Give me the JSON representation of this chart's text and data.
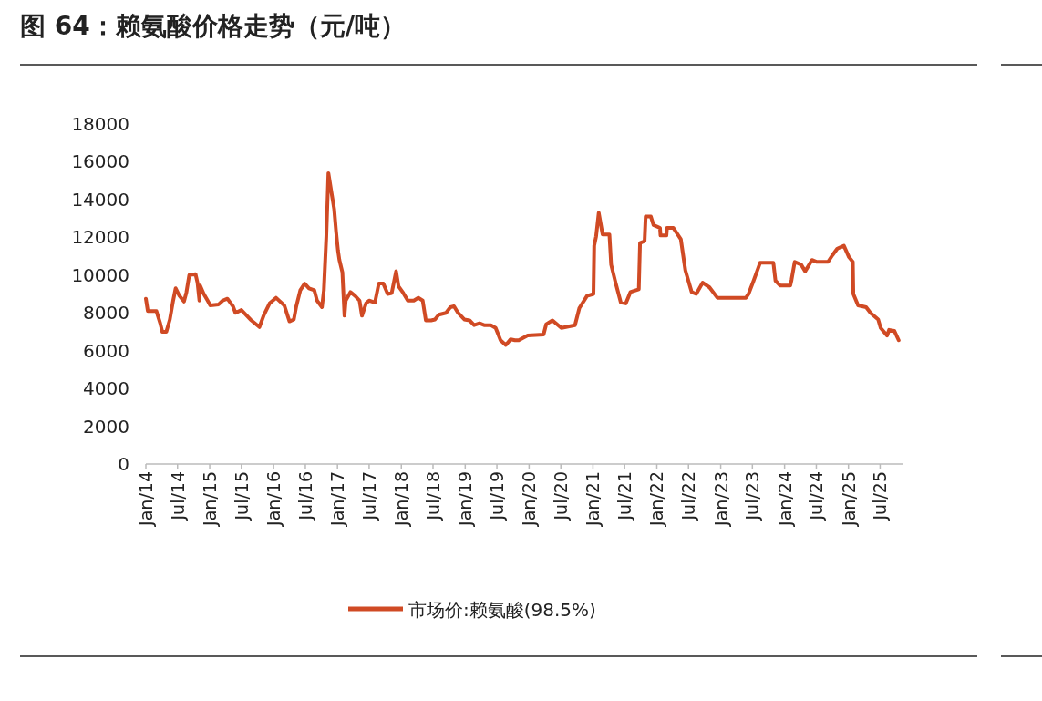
{
  "chart_data": {
    "type": "line",
    "title": "图 64：赖氨酸价格走势（元/吨）",
    "legend": "bottom",
    "xlim": [
      "2014-01-01",
      "2025-11-06"
    ],
    "ylim": [
      0,
      18000
    ],
    "yticks": [
      0,
      2000,
      4000,
      6000,
      8000,
      10000,
      12000,
      14000,
      16000,
      18000
    ],
    "xticks": [
      {
        "value": "2014-01",
        "label": "Jan/14"
      },
      {
        "value": "2014-07",
        "label": "Jul/14"
      },
      {
        "value": "2015-01",
        "label": "Jan/15"
      },
      {
        "value": "2015-07",
        "label": "Jul/15"
      },
      {
        "value": "2016-01",
        "label": "Jan/16"
      },
      {
        "value": "2016-07",
        "label": "Jul/16"
      },
      {
        "value": "2017-01",
        "label": "Jan/17"
      },
      {
        "value": "2017-07",
        "label": "Jul/17"
      },
      {
        "value": "2018-01",
        "label": "Jan/18"
      },
      {
        "value": "2018-07",
        "label": "Jul/18"
      },
      {
        "value": "2019-01",
        "label": "Jan/19"
      },
      {
        "value": "2019-07",
        "label": "Jul/19"
      },
      {
        "value": "2020-01",
        "label": "Jan/20"
      },
      {
        "value": "2020-07",
        "label": "Jul/20"
      },
      {
        "value": "2021-01",
        "label": "Jan/21"
      },
      {
        "value": "2021-07",
        "label": "Jul/21"
      },
      {
        "value": "2022-01",
        "label": "Jan/22"
      },
      {
        "value": "2022-07",
        "label": "Jul/22"
      },
      {
        "value": "2023-01",
        "label": "Jan/23"
      },
      {
        "value": "2023-07",
        "label": "Jul/23"
      },
      {
        "value": "2024-01",
        "label": "Jan/24"
      },
      {
        "value": "2024-07",
        "label": "Jul/24"
      },
      {
        "value": "2025-01",
        "label": "Jan/25"
      },
      {
        "value": "2025-07",
        "label": "Jul/25"
      }
    ],
    "x": [
      "2014-01-01",
      "2014-01-12",
      "2014-03-02",
      "2014-03-24",
      "2014-04-05",
      "2014-04-28",
      "2014-05-18",
      "2014-06-06",
      "2014-06-20",
      "2014-07-12",
      "2014-08-07",
      "2014-08-21",
      "2014-09-06",
      "2014-10-12",
      "2014-10-23",
      "2014-11-03",
      "2014-11-07",
      "2014-11-28",
      "2014-12-20",
      "2015-01-04",
      "2015-02-21",
      "2015-03-16",
      "2015-04-12",
      "2015-05-14",
      "2015-05-28",
      "2015-07-01",
      "2015-08-21",
      "2015-10-12",
      "2015-11-07",
      "2015-12-09",
      "2016-01-15",
      "2016-03-02",
      "2016-04-01",
      "2016-04-26",
      "2016-05-10",
      "2016-06-02",
      "2016-06-27",
      "2016-07-22",
      "2016-08-21",
      "2016-09-06",
      "2016-10-04",
      "2016-10-15",
      "2016-10-29",
      "2016-11-10",
      "2016-11-28",
      "2016-12-13",
      "2016-12-24",
      "2017-01-04",
      "2017-01-12",
      "2017-01-29",
      "2017-02-10",
      "2017-02-17",
      "2017-03-16",
      "2017-04-12",
      "2017-05-07",
      "2017-05-21",
      "2017-06-13",
      "2017-07-01",
      "2017-08-03",
      "2017-08-25",
      "2017-09-20",
      "2017-10-15",
      "2017-11-07",
      "2017-12-02",
      "2017-12-16",
      "2018-01-12",
      "2018-02-07",
      "2018-03-13",
      "2018-04-08",
      "2018-05-03",
      "2018-05-21",
      "2018-06-20",
      "2018-07-12",
      "2018-08-03",
      "2018-09-13",
      "2018-10-08",
      "2018-10-29",
      "2018-11-21",
      "2018-12-27",
      "2019-01-26",
      "2019-02-21",
      "2019-03-24",
      "2019-04-19",
      "2019-05-28",
      "2019-06-24",
      "2019-07-22",
      "2019-08-21",
      "2019-09-17",
      "2019-10-12",
      "2019-11-03",
      "2019-12-24",
      "2020-03-24",
      "2020-04-08",
      "2020-05-14",
      "2020-07-04",
      "2020-09-20",
      "2020-10-15",
      "2020-11-28",
      "2021-01-04",
      "2021-01-08",
      "2021-01-19",
      "2021-02-03",
      "2021-02-25",
      "2021-04-05",
      "2021-04-15",
      "2021-05-10",
      "2021-06-09",
      "2021-07-08",
      "2021-08-03",
      "2021-09-20",
      "2021-09-27",
      "2021-10-23",
      "2021-10-29",
      "2021-11-28",
      "2021-12-13",
      "2022-01-19",
      "2022-01-22",
      "2022-02-25",
      "2022-02-28",
      "2022-04-05",
      "2022-05-18",
      "2022-06-13",
      "2022-07-19",
      "2022-08-14",
      "2022-09-20",
      "2022-10-29",
      "2022-12-13",
      "2023-05-25",
      "2023-06-09",
      "2023-07-08",
      "2023-08-14",
      "2023-10-29",
      "2023-11-10",
      "2023-12-06",
      "2024-02-03",
      "2024-02-10",
      "2024-02-28",
      "2024-04-05",
      "2024-04-28",
      "2024-06-06",
      "2024-07-04",
      "2024-09-06",
      "2024-10-01",
      "2024-10-29",
      "2024-12-06",
      "2025-01-04",
      "2025-01-26",
      "2025-01-29",
      "2025-02-25",
      "2025-04-12",
      "2025-05-07",
      "2025-06-20",
      "2025-07-04",
      "2025-08-10",
      "2025-08-21",
      "2025-09-20",
      "2025-10-15"
    ],
    "series": [
      {
        "name": "市场价:赖氨酸(98.5%)",
        "color": "#d04a24",
        "values": [
          8750,
          8100,
          8100,
          7450,
          7000,
          7000,
          7650,
          8650,
          9300,
          8900,
          8600,
          9100,
          10000,
          10050,
          9600,
          8650,
          9450,
          9000,
          8650,
          8400,
          8450,
          8650,
          8750,
          8350,
          8000,
          8150,
          7650,
          7250,
          7900,
          8500,
          8800,
          8400,
          7550,
          7650,
          8350,
          9200,
          9550,
          9300,
          9200,
          8650,
          8300,
          9200,
          12050,
          15400,
          14350,
          13500,
          12300,
          11300,
          10800,
          10150,
          7850,
          8650,
          9100,
          8900,
          8650,
          7850,
          8500,
          8650,
          8550,
          9550,
          9550,
          9000,
          9050,
          10200,
          9400,
          9050,
          8650,
          8650,
          8800,
          8650,
          7600,
          7600,
          7650,
          7900,
          8000,
          8300,
          8350,
          8000,
          7650,
          7600,
          7350,
          7450,
          7350,
          7350,
          7200,
          6550,
          6300,
          6600,
          6550,
          6550,
          6800,
          6850,
          7400,
          7600,
          7200,
          7350,
          8250,
          8900,
          9000,
          11550,
          12050,
          13300,
          12150,
          12150,
          10550,
          9600,
          8550,
          8500,
          9100,
          9250,
          11700,
          11800,
          13100,
          13100,
          12650,
          12500,
          12100,
          12100,
          12500,
          12500,
          11900,
          10250,
          9100,
          9000,
          9600,
          9350,
          8800,
          8800,
          9000,
          9700,
          10650,
          10650,
          9700,
          9450,
          9450,
          9750,
          10700,
          10550,
          10200,
          10800,
          10700,
          10700,
          11050,
          11400,
          11550,
          10950,
          10700,
          9000,
          8400,
          8300,
          8000,
          7650,
          7200,
          6800,
          7100,
          7050,
          6550
        ]
      }
    ]
  }
}
